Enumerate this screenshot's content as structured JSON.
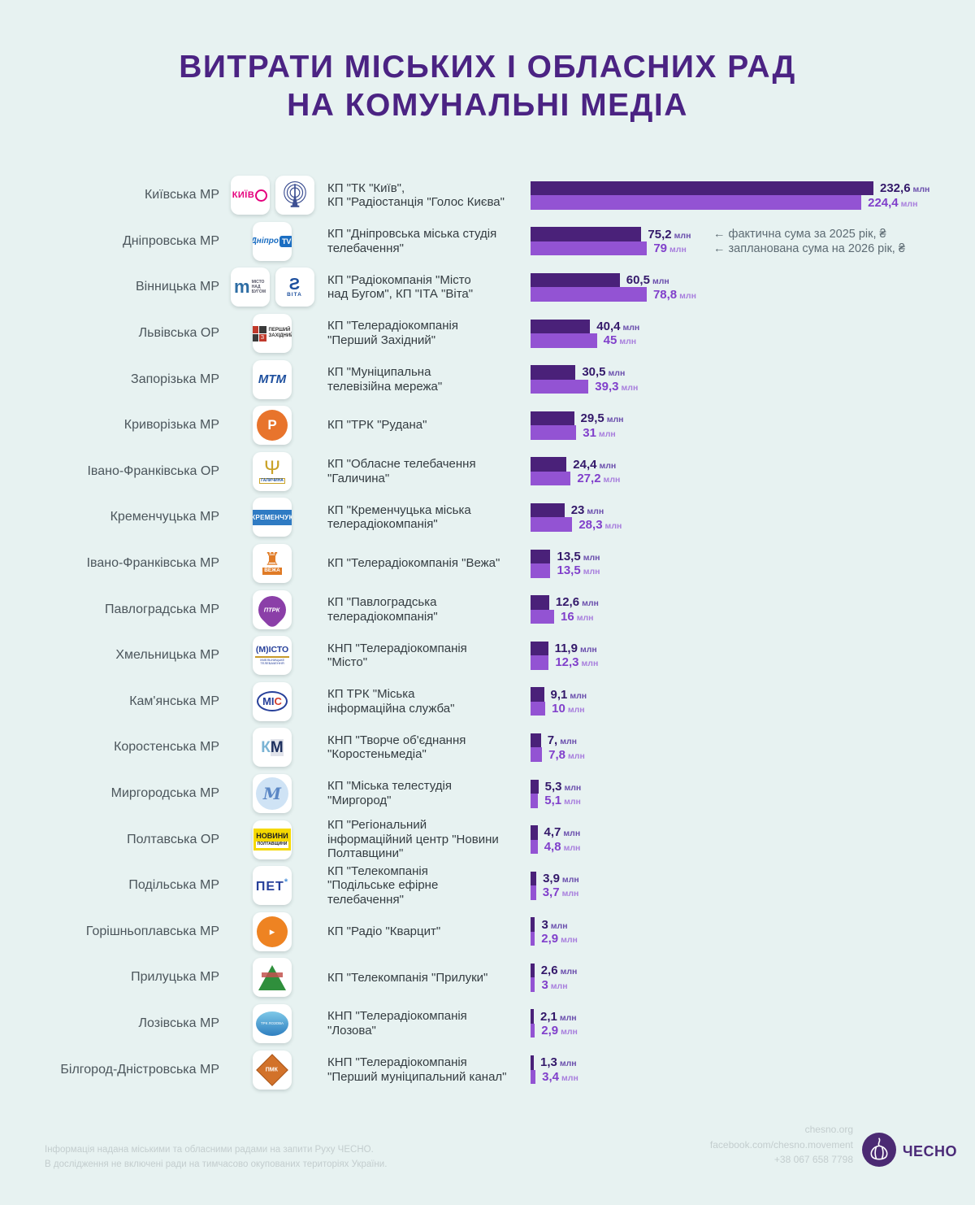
{
  "page": {
    "background": "#e7f2f1",
    "title": "ВИТРАТИ МІСЬКИХ І ОБЛАСНИХ РАД\nНА КОМУНАЛЬНІ МЕДІА"
  },
  "legend": {
    "actual_2025": "← фактична сума за 2025 рік, ₴",
    "planned_2026": "← запланована сума на 2026 рік, ₴"
  },
  "colors": {
    "bar_2025": "#4a2179",
    "bar_2026": "#9353d3",
    "title": "#4b2383",
    "value_2025_text": "#34196a",
    "value_2026_text": "#8140cb"
  },
  "footer": {
    "note_line1": "Інформація надана міськими та обласними радами на запити Руху ЧЕСНО.",
    "note_line2": "В дослідження не включені ради на тимчасово окупованих територіях України.",
    "website": "chesno.org",
    "facebook": "facebook.com/chesno.movement",
    "phone": "+38 067 658 7798",
    "brand": "ЧЕСНО"
  },
  "chart_data": {
    "type": "bar",
    "orientation": "horizontal",
    "unit_label": "млн",
    "currency": "₴",
    "max_value": 232.6,
    "series": [
      {
        "name": "фактична сума за 2025 рік, ₴",
        "color": "#4a2179"
      },
      {
        "name": "запланована сума на 2026 рік, ₴",
        "color": "#9353d3"
      }
    ],
    "rows": [
      {
        "council": "Київська МР",
        "company": "КП \"ТК \"Київ\",\nКП \"Радіостанція \"Голос Києва\"",
        "v2025": 232.6,
        "v2025_label": "232,6",
        "v2026": 224.4,
        "v2026_label": "224,4",
        "logos": [
          "kyiv-wordmark",
          "radio-tower"
        ]
      },
      {
        "council": "Дніпровська МР",
        "company": "КП \"Дніпровська міська студія\nтелебачення\"",
        "v2025": 75.2,
        "v2025_label": "75,2",
        "v2026": 79,
        "v2026_label": "79",
        "logos": [
          "dnipro-tv"
        ]
      },
      {
        "council": "Вінницька МР",
        "company": "КП \"Радіокомпанія \"Місто\nнад Бугом\", КП \"ІТА \"Віта\"",
        "v2025": 60.5,
        "v2025_label": "60,5",
        "v2026": 78.8,
        "v2026_label": "78,8",
        "logos": [
          "misto-nad-buhom",
          "vita"
        ]
      },
      {
        "council": "Львівська ОР",
        "company": "КП \"Телерадіокомпанія\n\"Перший Західний\"",
        "v2025": 40.4,
        "v2025_label": "40,4",
        "v2026": 45,
        "v2026_label": "45",
        "logos": [
          "pershyi-zakhidnyi"
        ]
      },
      {
        "council": "Запорізька МР",
        "company": "КП \"Муніципальна\nтелевізійна мережа\"",
        "v2025": 30.5,
        "v2025_label": "30,5",
        "v2026": 39.3,
        "v2026_label": "39,3",
        "logos": [
          "mtm"
        ]
      },
      {
        "council": "Криворізька МР",
        "company": "КП \"ТРК \"Рудана\"",
        "v2025": 29.5,
        "v2025_label": "29,5",
        "v2026": 31,
        "v2026_label": "31",
        "logos": [
          "rudana"
        ]
      },
      {
        "council": "Івано-Франківська ОР",
        "company": "КП \"Обласне телебачення\n\"Галичина\"",
        "v2025": 24.4,
        "v2025_label": "24,4",
        "v2026": 27.2,
        "v2026_label": "27,2",
        "logos": [
          "halychyna"
        ]
      },
      {
        "council": "Кременчуцька МР",
        "company": "КП \"Кременчуцька міська\nтелерадіокомпанія\"",
        "v2025": 23,
        "v2025_label": "23",
        "v2026": 28.3,
        "v2026_label": "28,3",
        "logos": [
          "kremenchuk"
        ]
      },
      {
        "council": "Івано-Франківська МР",
        "company": "КП \"Телерадіокомпанія \"Вежа\"",
        "v2025": 13.5,
        "v2025_label": "13,5",
        "v2026": 13.5,
        "v2026_label": "13,5",
        "logos": [
          "vezha"
        ]
      },
      {
        "council": "Павлоградська МР",
        "company": "КП \"Павлоградська\nтелерадіокомпанія\"",
        "v2025": 12.6,
        "v2025_label": "12,6",
        "v2026": 16,
        "v2026_label": "16",
        "logos": [
          "ptrk"
        ]
      },
      {
        "council": "Хмельницька МР",
        "company": "КНП \"Телерадіокомпанія\n\"Місто\"",
        "v2025": 11.9,
        "v2025_label": "11,9",
        "v2026": 12.3,
        "v2026_label": "12,3",
        "logos": [
          "misto-khmelnytskyi"
        ]
      },
      {
        "council": "Кам'янська МР",
        "company": "КП ТРК \"Міська\nінформаційна служба\"",
        "v2025": 9.1,
        "v2025_label": "9,1",
        "v2026": 10,
        "v2026_label": "10",
        "logos": [
          "mis"
        ]
      },
      {
        "council": "Коростенська МР",
        "company": "КНП \"Творче об'єднання\n\"Коростеньмедіа\"",
        "v2025": 7,
        "v2025_label": "7,",
        "v2026": 7.8,
        "v2026_label": "7,8",
        "logos": [
          "korostenmedia"
        ]
      },
      {
        "council": "Миргородська МР",
        "company": "КП \"Міська телестудія\n\"Миргород\"",
        "v2025": 5.3,
        "v2025_label": "5,3",
        "v2026": 5.1,
        "v2026_label": "5,1",
        "logos": [
          "myrhorod"
        ]
      },
      {
        "council": "Полтавська ОР",
        "company": "КП \"Регіональний\nінформаційний центр \"Новини\nПолтавщини\"",
        "v2025": 4.7,
        "v2025_label": "4,7",
        "v2026": 4.8,
        "v2026_label": "4,8",
        "logos": [
          "novyny-poltavshchyny"
        ]
      },
      {
        "council": "Подільська МР",
        "company": "КП \"Телекомпанія\n\"Подільське ефірне\nтелебачення\"",
        "v2025": 3.9,
        "v2025_label": "3,9",
        "v2026": 3.7,
        "v2026_label": "3,7",
        "logos": [
          "pet"
        ]
      },
      {
        "council": "Горішньоплавська МР",
        "company": "КП \"Радіо \"Кварцит\"",
        "v2025": 3,
        "v2025_label": "3",
        "v2026": 2.9,
        "v2026_label": "2,9",
        "logos": [
          "kvartsyt"
        ]
      },
      {
        "council": "Прилуцька МР",
        "company": "КП \"Телекомпанія \"Прилуки\"",
        "v2025": 2.6,
        "v2025_label": "2,6",
        "v2026": 3,
        "v2026_label": "3",
        "logos": [
          "pryluky"
        ]
      },
      {
        "council": "Лозівська МР",
        "company": "КНП \"Телерадіокомпанія\n\"Лозова\"",
        "v2025": 2.1,
        "v2025_label": "2,1",
        "v2026": 2.9,
        "v2026_label": "2,9",
        "logos": [
          "lozova"
        ]
      },
      {
        "council": "Білгород-Дністровська МР",
        "company": "КНП \"Телерадіокомпанія\n\"Перший муніципальний канал\"",
        "v2025": 1.3,
        "v2025_label": "1,3",
        "v2026": 3.4,
        "v2026_label": "3,4",
        "logos": [
          "pmk"
        ]
      }
    ]
  }
}
